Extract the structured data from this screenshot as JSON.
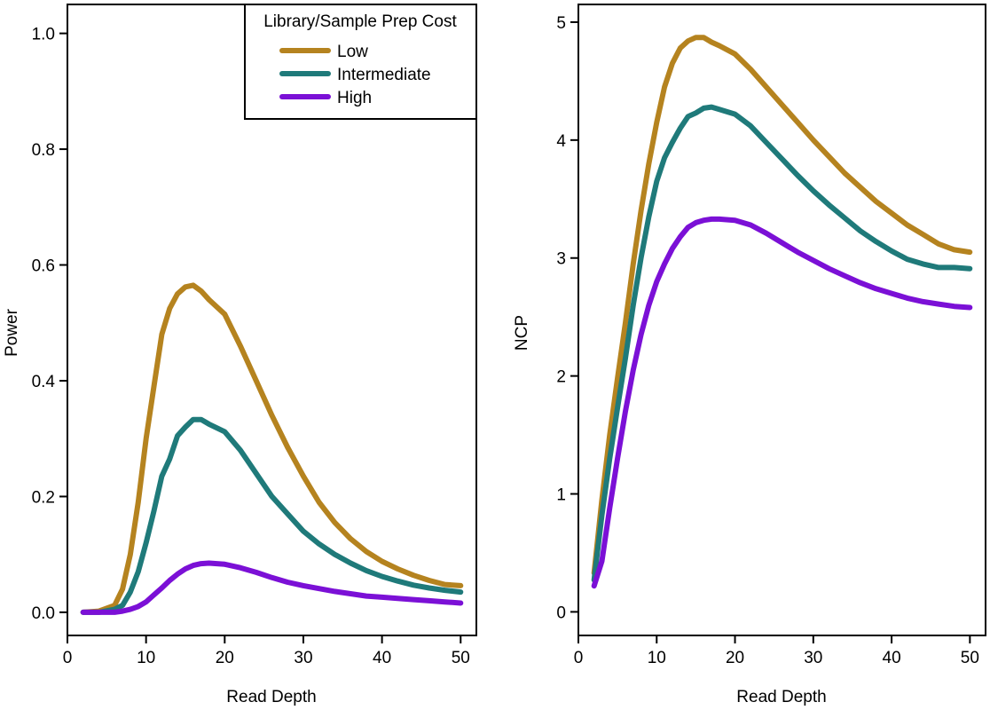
{
  "chart_data": [
    {
      "type": "line",
      "xlabel": "Read Depth",
      "ylabel": "Power",
      "xlim": [
        0,
        52
      ],
      "ylim": [
        -0.04,
        1.05
      ],
      "xticks": [
        0,
        10,
        20,
        30,
        40,
        50
      ],
      "xtick_labels": [
        "0",
        "10",
        "20",
        "30",
        "40",
        "50"
      ],
      "yticks": [
        0.0,
        0.2,
        0.4,
        0.6,
        0.8,
        1.0
      ],
      "ytick_labels": [
        "0.0",
        "0.2",
        "0.4",
        "0.6",
        "0.8",
        "1.0"
      ],
      "grid": false,
      "legend": {
        "title": "Library/Sample Prep Cost",
        "placement": "top-right"
      },
      "x": [
        2,
        4,
        6,
        7,
        8,
        9,
        10,
        11,
        12,
        13,
        14,
        15,
        16,
        17,
        18,
        20,
        22,
        24,
        26,
        28,
        30,
        32,
        34,
        36,
        38,
        40,
        42,
        44,
        46,
        48,
        50
      ],
      "series": [
        {
          "name": "Low",
          "color": "#b5831f",
          "values": [
            0.0,
            0.002,
            0.012,
            0.04,
            0.1,
            0.19,
            0.3,
            0.39,
            0.48,
            0.525,
            0.55,
            0.562,
            0.565,
            0.555,
            0.54,
            0.515,
            0.46,
            0.4,
            0.34,
            0.285,
            0.235,
            0.19,
            0.155,
            0.127,
            0.105,
            0.088,
            0.075,
            0.064,
            0.055,
            0.048,
            0.046
          ]
        },
        {
          "name": "Intermediate",
          "color": "#1f7a7a",
          "values": [
            0.0,
            0.0,
            0.005,
            0.012,
            0.035,
            0.07,
            0.12,
            0.175,
            0.235,
            0.265,
            0.305,
            0.32,
            0.333,
            0.333,
            0.325,
            0.312,
            0.28,
            0.24,
            0.2,
            0.17,
            0.14,
            0.118,
            0.1,
            0.085,
            0.072,
            0.062,
            0.054,
            0.047,
            0.042,
            0.038,
            0.035
          ]
        },
        {
          "name": "High",
          "color": "#7b10d6",
          "values": [
            0.0,
            0.0,
            0.0,
            0.002,
            0.005,
            0.01,
            0.018,
            0.03,
            0.042,
            0.055,
            0.066,
            0.075,
            0.081,
            0.084,
            0.085,
            0.083,
            0.077,
            0.069,
            0.06,
            0.052,
            0.046,
            0.041,
            0.036,
            0.032,
            0.028,
            0.026,
            0.024,
            0.022,
            0.02,
            0.018,
            0.016
          ]
        }
      ]
    },
    {
      "type": "line",
      "xlabel": "Read Depth",
      "ylabel": "NCP",
      "xlim": [
        0,
        52
      ],
      "ylim": [
        -0.2,
        5.15
      ],
      "xticks": [
        0,
        10,
        20,
        30,
        40,
        50
      ],
      "xtick_labels": [
        "0",
        "10",
        "20",
        "30",
        "40",
        "50"
      ],
      "yticks": [
        0,
        1,
        2,
        3,
        4,
        5
      ],
      "ytick_labels": [
        "0",
        "1",
        "2",
        "3",
        "4",
        "5"
      ],
      "grid": false,
      "x": [
        2,
        3,
        4,
        5,
        6,
        7,
        8,
        9,
        10,
        11,
        12,
        13,
        14,
        15,
        16,
        17,
        18,
        20,
        22,
        24,
        26,
        28,
        30,
        32,
        34,
        36,
        38,
        40,
        42,
        44,
        46,
        48,
        50
      ],
      "series": [
        {
          "name": "Low",
          "color": "#b5831f",
          "values": [
            0.33,
            0.95,
            1.5,
            1.98,
            2.45,
            2.95,
            3.4,
            3.8,
            4.15,
            4.45,
            4.65,
            4.78,
            4.84,
            4.87,
            4.87,
            4.83,
            4.8,
            4.73,
            4.6,
            4.45,
            4.3,
            4.15,
            4.0,
            3.86,
            3.72,
            3.6,
            3.48,
            3.38,
            3.28,
            3.2,
            3.12,
            3.07,
            3.05
          ]
        },
        {
          "name": "Intermediate",
          "color": "#1f7a7a",
          "values": [
            0.27,
            0.82,
            1.3,
            1.73,
            2.15,
            2.6,
            3.0,
            3.35,
            3.65,
            3.85,
            3.98,
            4.1,
            4.2,
            4.23,
            4.27,
            4.28,
            4.26,
            4.22,
            4.12,
            3.98,
            3.84,
            3.7,
            3.57,
            3.45,
            3.34,
            3.23,
            3.14,
            3.06,
            2.99,
            2.95,
            2.92,
            2.92,
            2.91
          ]
        },
        {
          "name": "High",
          "color": "#7b10d6",
          "values": [
            0.22,
            0.43,
            0.88,
            1.3,
            1.7,
            2.05,
            2.35,
            2.6,
            2.8,
            2.95,
            3.08,
            3.18,
            3.26,
            3.3,
            3.32,
            3.33,
            3.33,
            3.32,
            3.28,
            3.21,
            3.13,
            3.05,
            2.98,
            2.91,
            2.85,
            2.79,
            2.74,
            2.7,
            2.66,
            2.63,
            2.61,
            2.59,
            2.58
          ]
        }
      ]
    }
  ]
}
